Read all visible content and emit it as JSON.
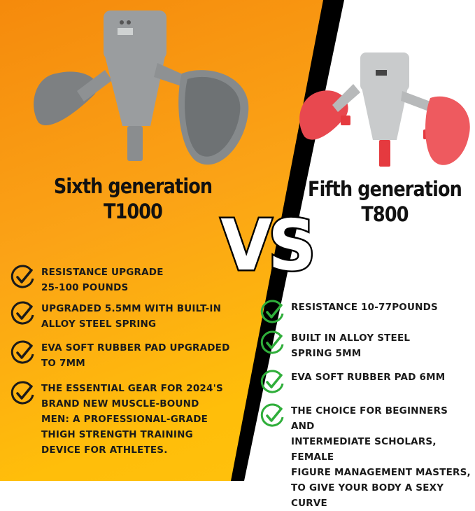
{
  "left": {
    "title_line1": "Sixth generation",
    "title_line2": "T1000",
    "device_color": "#8e9193",
    "features": [
      "RESISTANCE UPGRADE\n25-100 POUNDS",
      "UPGRADED 5.5MM WITH BUILT-IN\nALLOY STEEL SPRING",
      "EVA SOFT RUBBER PAD UPGRADED\nTO 7MM",
      "THE ESSENTIAL GEAR FOR 2024'S\nBRAND NEW MUSCLE-BOUND\nMEN: A PROFESSIONAL-GRADE\nTHIGH STRENGTH TRAINING\nDEVICE FOR ATHLETES."
    ],
    "check_color": "#1a1a1a"
  },
  "right": {
    "title_line1": "Fifth generation",
    "title_line2": "T800",
    "device_color": "#e8484f",
    "features": [
      "RESISTANCE 10-77POUNDS",
      "BUILT IN ALLOY STEEL\nSPRING 5MM",
      "EVA SOFT RUBBER PAD 6MM",
      "THE CHOICE FOR BEGINNERS AND\nINTERMEDIATE SCHOLARS,  FEMALE\nFIGURE MANAGEMENT MASTERS,\nTO GIVE YOUR BODY A SEXY CURVE"
    ],
    "check_color": "#2fae3a"
  },
  "vs_label": "VS"
}
